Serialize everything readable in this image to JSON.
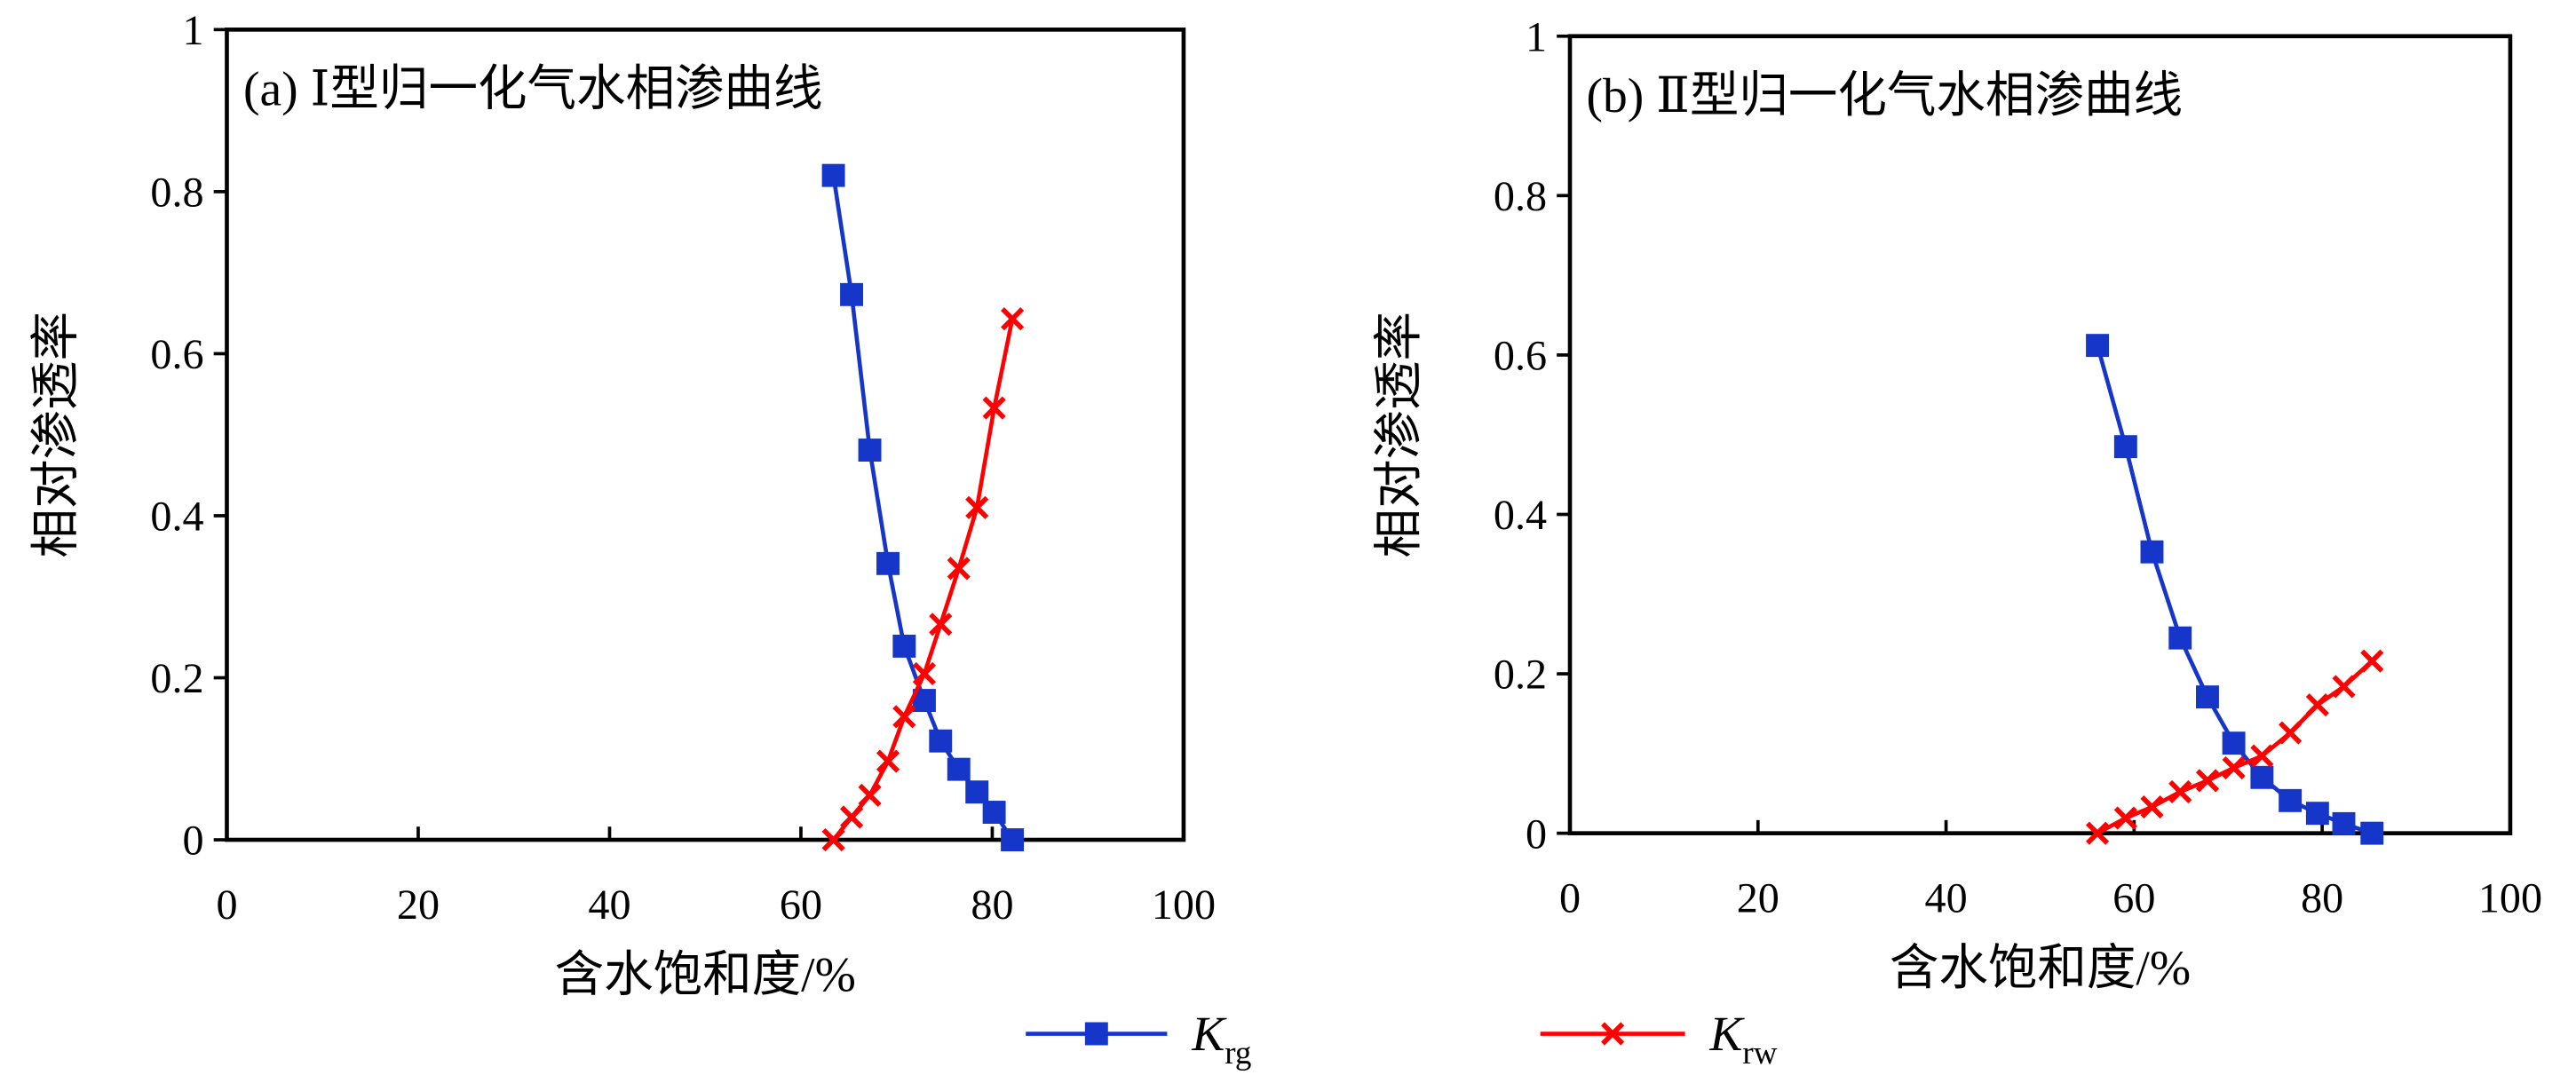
{
  "chart_data": [
    {
      "type": "line",
      "title": "(a) Ⅰ型归一化气水相渗曲线",
      "x_label": "含水饱和度/%",
      "y_label": "相对渗透率",
      "xlim": [
        0,
        100
      ],
      "xticks": [
        0,
        20,
        40,
        60,
        80,
        100
      ],
      "ylim": [
        0,
        1
      ],
      "yticks": [
        0,
        0.2,
        0.4,
        0.6,
        0.8,
        1
      ],
      "series": [
        {
          "name": "Krg",
          "color": "#1536c8",
          "marker": "square",
          "x": [
            63.4,
            65.3,
            67.2,
            69.1,
            70.8,
            72.9,
            74.6,
            76.5,
            78.4,
            80.2,
            82.1
          ],
          "values": [
            0.82,
            0.673,
            0.481,
            0.341,
            0.239,
            0.172,
            0.122,
            0.087,
            0.059,
            0.034,
            0
          ]
        },
        {
          "name": "Krw",
          "color": "#ff0000",
          "marker": "x",
          "x": [
            63.4,
            65.3,
            67.2,
            69.1,
            70.8,
            72.9,
            74.6,
            76.5,
            78.4,
            80.2,
            82.1
          ],
          "values": [
            0,
            0.028,
            0.055,
            0.097,
            0.152,
            0.205,
            0.266,
            0.335,
            0.41,
            0.533,
            0.643
          ]
        }
      ]
    },
    {
      "type": "line",
      "title": "(b) Ⅱ型归一化气水相渗曲线",
      "x_label": "含水饱和度/%",
      "y_label": "相对渗透率",
      "xlim": [
        0,
        100
      ],
      "xticks": [
        0,
        20,
        40,
        60,
        80,
        100
      ],
      "ylim": [
        0,
        1
      ],
      "yticks": [
        0,
        0.2,
        0.4,
        0.6,
        0.8,
        1
      ],
      "series": [
        {
          "color": "#1536c8",
          "marker": "square",
          "x": [
            56.1,
            59.1,
            61.9,
            64.9,
            67.8,
            70.6,
            73.6,
            76.6,
            79.5,
            82.3,
            85.3
          ],
          "values": [
            0.612,
            0.485,
            0.353,
            0.245,
            0.171,
            0.113,
            0.07,
            0.041,
            0.025,
            0.012,
            0
          ]
        },
        {
          "color": "#ff0000",
          "marker": "x",
          "x": [
            56.1,
            59.1,
            61.9,
            64.9,
            67.8,
            70.6,
            73.6,
            76.6,
            79.5,
            82.3,
            85.3
          ],
          "values": [
            0,
            0.019,
            0.033,
            0.052,
            0.066,
            0.082,
            0.097,
            0.126,
            0.161,
            0.184,
            0.216
          ]
        }
      ]
    }
  ]
}
